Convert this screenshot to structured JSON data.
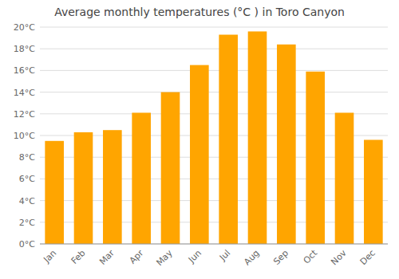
{
  "chart_data": {
    "type": "bar",
    "title": "Average monthly temperatures (°C ) in Toro Canyon",
    "categories": [
      "Jan",
      "Feb",
      "Mar",
      "Apr",
      "May",
      "Jun",
      "Jul",
      "Aug",
      "Sep",
      "Oct",
      "Nov",
      "Dec"
    ],
    "values": [
      9.5,
      10.3,
      10.5,
      12.1,
      14.0,
      16.5,
      19.3,
      19.6,
      18.4,
      15.9,
      12.1,
      9.6
    ],
    "color": "#FFA500",
    "ylim": [
      0,
      20
    ],
    "yticks": [
      {
        "value": 0,
        "label": "0°C"
      },
      {
        "value": 2,
        "label": "2°C"
      },
      {
        "value": 4,
        "label": "4°C"
      },
      {
        "value": 6,
        "label": "6°C"
      },
      {
        "value": 8,
        "label": "8°C"
      },
      {
        "value": 10,
        "label": "10°C"
      },
      {
        "value": 12,
        "label": "12°C"
      },
      {
        "value": 14,
        "label": "14°C"
      },
      {
        "value": 16,
        "label": "16°C"
      },
      {
        "value": 18,
        "label": "18°C"
      },
      {
        "value": 20,
        "label": "20°C"
      }
    ],
    "grid": true
  }
}
